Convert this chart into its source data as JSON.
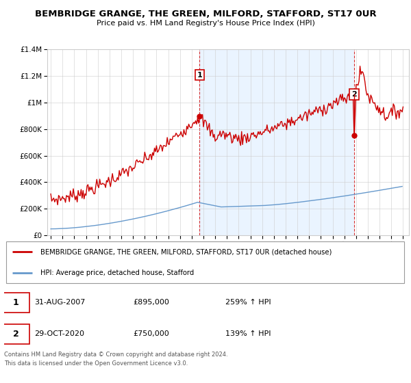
{
  "title": "BEMBRIDGE GRANGE, THE GREEN, MILFORD, STAFFORD, ST17 0UR",
  "subtitle": "Price paid vs. HM Land Registry's House Price Index (HPI)",
  "legend_line1": "BEMBRIDGE GRANGE, THE GREEN, MILFORD, STAFFORD, ST17 0UR (detached house)",
  "legend_line2": "HPI: Average price, detached house, Stafford",
  "annotation1_date": "31-AUG-2007",
  "annotation1_price": "£895,000",
  "annotation1_hpi": "259% ↑ HPI",
  "annotation2_date": "29-OCT-2020",
  "annotation2_price": "£750,000",
  "annotation2_hpi": "139% ↑ HPI",
  "footer": "Contains HM Land Registry data © Crown copyright and database right 2024.\nThis data is licensed under the Open Government Licence v3.0.",
  "hpi_color": "#6699cc",
  "price_color": "#cc0000",
  "shade_color": "#ddeeff",
  "ylim": [
    0,
    1400000
  ],
  "yticks": [
    0,
    200000,
    400000,
    600000,
    800000,
    1000000,
    1200000,
    1400000
  ],
  "xlim_start": 1994.7,
  "xlim_end": 2025.5,
  "background_color": "#ffffff",
  "sale1_x": 2007.67,
  "sale1_y": 895000,
  "sale2_x": 2020.83,
  "sale2_y": 750000,
  "xticks": [
    1995,
    1996,
    1997,
    1998,
    1999,
    2000,
    2001,
    2002,
    2003,
    2004,
    2005,
    2006,
    2007,
    2008,
    2009,
    2010,
    2011,
    2012,
    2013,
    2014,
    2015,
    2016,
    2017,
    2018,
    2019,
    2020,
    2021,
    2022,
    2023,
    2024,
    2025
  ]
}
